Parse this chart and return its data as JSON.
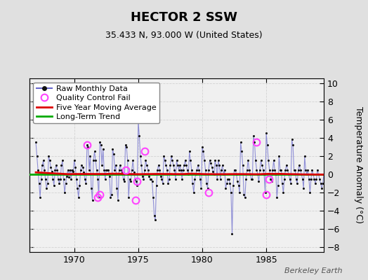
{
  "title": "HECTOR 2 SSW",
  "subtitle": "35.433 N, 93.000 W (United States)",
  "ylabel": "Temperature Anomaly (°C)",
  "watermark": "Berkeley Earth",
  "ylim": [
    -8.5,
    10.5
  ],
  "yticks": [
    -8,
    -6,
    -4,
    -2,
    0,
    2,
    4,
    6,
    8,
    10
  ],
  "xlim": [
    1966.5,
    1989.5
  ],
  "xticks": [
    1970,
    1975,
    1980,
    1985
  ],
  "bg_color": "#e0e0e0",
  "plot_bg_color": "#f0f0f0",
  "raw_color": "#6666cc",
  "raw_alpha": 0.7,
  "dot_color": "#111111",
  "qc_color": "#ff44ff",
  "moving_avg_color": "#dd0000",
  "trend_color": "#00aa00",
  "start_year": 1967,
  "end_year": 1989,
  "raw_data": [
    3.5,
    2.0,
    0.5,
    -1.0,
    -2.5,
    -0.5,
    1.0,
    1.5,
    0.5,
    -0.5,
    -1.5,
    -1.0,
    2.0,
    1.5,
    0.8,
    0.3,
    -0.5,
    -1.2,
    0.5,
    1.0,
    0.5,
    -0.5,
    -1.0,
    -0.5,
    1.0,
    1.5,
    -0.5,
    -2.0,
    -1.0,
    -0.2,
    0.5,
    -0.3,
    0.5,
    -0.5,
    0.5,
    0.3,
    1.5,
    0.8,
    -0.5,
    -1.5,
    -2.5,
    -1.2,
    0.5,
    1.0,
    0.8,
    0.2,
    -0.5,
    -1.0,
    3.2,
    3.0,
    0.5,
    2.0,
    -1.5,
    -2.8,
    1.5,
    2.5,
    1.5,
    0.5,
    -0.5,
    -2.5,
    3.5,
    3.2,
    1.0,
    2.8,
    0.5,
    -0.5,
    0.5,
    0.5,
    0.5,
    -0.2,
    -2.5,
    -2.2,
    2.8,
    2.2,
    0.5,
    1.0,
    -1.5,
    -2.8,
    0.5,
    1.0,
    0.5,
    0.2,
    -0.5,
    -0.8,
    3.2,
    3.0,
    1.5,
    -2.5,
    -0.5,
    -0.8,
    0.5,
    1.5,
    0.2,
    -0.5,
    -0.8,
    -1.2,
    5.8,
    4.2,
    2.0,
    1.0,
    -0.2,
    -0.5,
    0.5,
    1.5,
    1.0,
    0.5,
    -0.2,
    -0.5,
    -0.5,
    -0.8,
    -2.5,
    -4.5,
    -5.0,
    -1.2,
    0.5,
    1.0,
    0.5,
    -0.2,
    -0.5,
    -1.0,
    2.0,
    1.5,
    1.0,
    0.5,
    -1.0,
    -0.5,
    1.0,
    2.0,
    1.5,
    1.0,
    0.5,
    -0.5,
    1.5,
    1.0,
    0.5,
    1.0,
    0.5,
    -0.5,
    0.5,
    1.0,
    1.5,
    1.0,
    0.5,
    0.0,
    2.5,
    1.5,
    0.5,
    -1.0,
    -2.0,
    -0.5,
    0.0,
    0.5,
    1.0,
    0.5,
    -0.5,
    -1.5,
    3.0,
    2.5,
    1.5,
    0.5,
    -1.0,
    -1.5,
    0.5,
    1.5,
    1.2,
    0.8,
    0.3,
    0.0,
    1.5,
    1.0,
    -0.5,
    1.5,
    1.0,
    -0.5,
    0.5,
    1.0,
    0.0,
    0.5,
    -1.5,
    -1.0,
    -0.5,
    -0.5,
    -1.0,
    -2.0,
    -6.5,
    -1.2,
    0.5,
    0.5,
    0.0,
    -0.8,
    -1.2,
    -2.0,
    3.5,
    2.5,
    1.0,
    -2.2,
    -2.5,
    -0.5,
    0.5,
    1.5,
    0.5,
    0.0,
    -0.5,
    -0.5,
    4.2,
    3.5,
    1.5,
    0.5,
    0.0,
    -0.8,
    0.5,
    1.5,
    1.0,
    0.5,
    0.0,
    -2.0,
    4.5,
    3.2,
    1.5,
    0.5,
    -0.5,
    -0.8,
    0.5,
    1.5,
    0.5,
    0.0,
    -2.5,
    -1.2,
    2.0,
    0.5,
    0.5,
    -1.0,
    -2.0,
    -0.5,
    0.5,
    1.0,
    0.5,
    0.0,
    -0.5,
    -1.0,
    3.8,
    3.2,
    0.5,
    0.5,
    -0.5,
    -1.0,
    0.5,
    1.0,
    0.5,
    0.0,
    -0.5,
    -1.5,
    2.0,
    0.5,
    0.0,
    0.5,
    -0.5,
    -2.0,
    -0.5,
    0.5,
    0.0,
    -0.5,
    -1.0,
    -0.5,
    0.5,
    0.0,
    -0.5,
    -1.0,
    -1.5,
    -1.0,
    0.0,
    0.5,
    0.0,
    -0.5,
    -0.5,
    -0.5
  ],
  "qc_fail_positions": [
    [
      1971.0,
      3.2
    ],
    [
      1971.8,
      -2.5
    ],
    [
      1972.0,
      -2.2
    ],
    [
      1974.0,
      0.5
    ],
    [
      1974.8,
      -2.8
    ],
    [
      1974.9,
      -0.8
    ],
    [
      1975.5,
      2.5
    ],
    [
      1980.5,
      -2.0
    ],
    [
      1984.2,
      3.5
    ],
    [
      1985.0,
      -2.2
    ],
    [
      1985.2,
      -0.5
    ]
  ],
  "moving_avg": [
    [
      -0.3,
      -0.3,
      -0.2,
      -0.1,
      -0.1,
      -0.15,
      -0.15,
      -0.1,
      -0.05,
      0.0,
      0.05,
      0.1
    ],
    [
      0.15,
      0.15,
      0.2,
      0.2,
      0.2,
      0.2,
      0.22,
      0.25,
      0.25,
      0.25,
      0.22,
      0.2
    ],
    [
      0.18,
      0.15,
      0.12,
      0.1,
      0.1,
      0.12,
      0.15,
      0.18,
      0.2,
      0.18,
      0.15,
      0.12
    ],
    [
      0.1,
      0.05,
      0.02,
      0.0,
      -0.02,
      -0.05,
      -0.05,
      -0.05,
      -0.02,
      0.0,
      0.0,
      0.0
    ],
    [
      0.0,
      0.0,
      0.02,
      0.05,
      0.05,
      0.05,
      0.08,
      0.1,
      0.12,
      0.12,
      0.1,
      0.08
    ],
    [
      0.05,
      0.02,
      0.0,
      -0.02,
      -0.05,
      -0.08,
      -0.1,
      -0.12,
      -0.12,
      -0.1,
      -0.08,
      -0.05
    ],
    [
      -0.02,
      0.0,
      0.0,
      0.02,
      0.05,
      0.08,
      0.1,
      0.12,
      0.15,
      0.18,
      0.2,
      0.22
    ],
    [
      0.25,
      0.28,
      0.3,
      0.3,
      0.28,
      0.25,
      0.22,
      0.18,
      0.15,
      0.1,
      0.05,
      0.0
    ],
    [
      -0.05,
      -0.08,
      -0.1,
      -0.12,
      -0.12,
      -0.1,
      -0.08,
      -0.05,
      -0.02,
      0.0,
      0.02,
      0.05
    ],
    [
      0.08,
      0.1,
      0.1,
      0.08,
      0.05,
      0.02,
      0.0,
      -0.02,
      -0.05,
      -0.05,
      -0.05,
      -0.02
    ],
    [
      0.0,
      0.02,
      0.05,
      0.08,
      0.1,
      0.12,
      0.12,
      0.1,
      0.08,
      0.05,
      0.02,
      0.0
    ],
    [
      -0.02,
      -0.05,
      -0.05,
      -0.02,
      0.0,
      0.02,
      0.02,
      0.0,
      -0.02,
      -0.05,
      -0.05,
      -0.05
    ],
    [
      -0.05,
      -0.05,
      -0.05,
      -0.05,
      -0.05,
      -0.05,
      -0.05,
      -0.05,
      -0.05,
      -0.05,
      -0.05,
      -0.05
    ],
    [
      -0.05,
      -0.05,
      -0.05,
      -0.05,
      -0.05,
      -0.05,
      -0.05,
      -0.05,
      -0.05,
      -0.05,
      -0.05,
      -0.05
    ],
    [
      -0.05,
      -0.05,
      -0.05,
      -0.05,
      -0.05,
      -0.05,
      -0.05,
      -0.05,
      -0.05,
      -0.05,
      -0.05,
      -0.05
    ],
    [
      -0.05,
      -0.05,
      -0.05,
      -0.05,
      -0.05,
      -0.05,
      -0.05,
      -0.05,
      -0.05,
      -0.05,
      -0.05,
      -0.05
    ],
    [
      -0.05,
      -0.05,
      -0.05,
      -0.05,
      -0.05,
      -0.05,
      -0.05,
      -0.05,
      -0.05,
      -0.05,
      -0.05,
      -0.05
    ],
    [
      -0.05,
      -0.05,
      -0.05,
      -0.05,
      -0.05,
      -0.05,
      -0.05,
      -0.05,
      -0.05,
      -0.05,
      -0.05,
      -0.05
    ],
    [
      -0.05,
      -0.05,
      -0.05,
      -0.05,
      -0.05,
      -0.05,
      -0.05,
      -0.05,
      -0.05,
      -0.05,
      -0.05,
      -0.05
    ],
    [
      -0.05,
      -0.05,
      -0.05,
      -0.05
    ]
  ],
  "trend_y": 0.0,
  "legend_fontsize": 8,
  "title_fontsize": 13,
  "subtitle_fontsize": 9,
  "tick_labelsize": 9
}
